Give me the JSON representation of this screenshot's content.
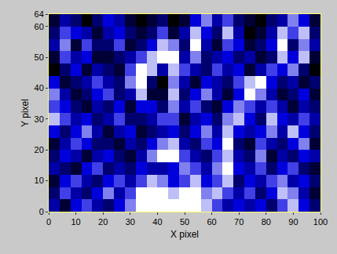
{
  "chart_data": {
    "type": "heatmap",
    "x_label": "X pixel",
    "y_label": "Y pixel",
    "xlim": [
      0,
      100
    ],
    "ylim": [
      0,
      64
    ],
    "xticks": [
      0,
      10,
      20,
      30,
      40,
      50,
      60,
      70,
      80,
      90,
      100
    ],
    "yticks": [
      0,
      10,
      20,
      30,
      40,
      50,
      60,
      64
    ],
    "x": [
      2,
      6,
      10,
      14,
      18,
      22,
      26,
      30,
      34,
      38,
      42,
      46,
      50,
      54,
      58,
      62,
      66,
      70,
      74,
      78,
      82,
      86,
      90,
      94,
      98
    ],
    "y": [
      62,
      58,
      54,
      50,
      46,
      42,
      38,
      34,
      30,
      26,
      22,
      18,
      14,
      10,
      6,
      2
    ],
    "z": [
      [
        3,
        5,
        4,
        2,
        4,
        6,
        5,
        3,
        2,
        3,
        4,
        2,
        3,
        6,
        8,
        5,
        7,
        4,
        3,
        2,
        4,
        5,
        8,
        6,
        3
      ],
      [
        4,
        7,
        6,
        5,
        3,
        5,
        6,
        4,
        3,
        4,
        7,
        3,
        5,
        9,
        6,
        4,
        9,
        5,
        2,
        3,
        5,
        9,
        7,
        9,
        4
      ],
      [
        5,
        8,
        3,
        7,
        4,
        4,
        7,
        3,
        4,
        6,
        9,
        8,
        4,
        10,
        5,
        3,
        7,
        6,
        3,
        4,
        6,
        10,
        4,
        8,
        5
      ],
      [
        3,
        7,
        5,
        6,
        3,
        3,
        4,
        5,
        7,
        9,
        10,
        10,
        5,
        8,
        4,
        5,
        6,
        4,
        5,
        3,
        4,
        9,
        6,
        9,
        3
      ],
      [
        2,
        4,
        6,
        3,
        5,
        4,
        3,
        7,
        10,
        9,
        5,
        9,
        7,
        5,
        4,
        7,
        5,
        6,
        3,
        5,
        7,
        6,
        8,
        4,
        2
      ],
      [
        6,
        3,
        4,
        5,
        7,
        5,
        4,
        8,
        10,
        4,
        2,
        8,
        5,
        3,
        6,
        5,
        4,
        7,
        9,
        10,
        6,
        4,
        5,
        3,
        4
      ],
      [
        8,
        5,
        3,
        4,
        6,
        7,
        4,
        5,
        9,
        3,
        3,
        9,
        4,
        6,
        8,
        5,
        3,
        6,
        10,
        8,
        5,
        3,
        4,
        6,
        3
      ],
      [
        7,
        6,
        4,
        3,
        5,
        4,
        6,
        3,
        6,
        6,
        4,
        8,
        5,
        7,
        4,
        3,
        6,
        8,
        7,
        5,
        7,
        5,
        3,
        5,
        4
      ],
      [
        9,
        7,
        5,
        6,
        4,
        5,
        7,
        4,
        4,
        5,
        7,
        7,
        3,
        5,
        6,
        4,
        8,
        9,
        6,
        4,
        9,
        6,
        5,
        7,
        5
      ],
      [
        6,
        4,
        6,
        8,
        5,
        3,
        5,
        6,
        3,
        4,
        5,
        6,
        4,
        6,
        8,
        5,
        9,
        6,
        5,
        6,
        8,
        5,
        9,
        6,
        4
      ],
      [
        3,
        5,
        7,
        6,
        4,
        4,
        3,
        5,
        4,
        6,
        8,
        9,
        5,
        4,
        7,
        6,
        10,
        4,
        3,
        7,
        5,
        4,
        6,
        8,
        3
      ],
      [
        4,
        6,
        5,
        3,
        5,
        6,
        4,
        3,
        5,
        8,
        10,
        10,
        7,
        5,
        4,
        7,
        9,
        5,
        4,
        8,
        3,
        5,
        4,
        6,
        5
      ],
      [
        5,
        4,
        3,
        6,
        7,
        4,
        5,
        4,
        6,
        5,
        5,
        6,
        8,
        7,
        5,
        8,
        10,
        6,
        5,
        7,
        4,
        6,
        7,
        4,
        3
      ],
      [
        3,
        6,
        7,
        5,
        4,
        6,
        7,
        5,
        7,
        9,
        8,
        6,
        7,
        9,
        6,
        7,
        9,
        4,
        6,
        5,
        7,
        8,
        5,
        6,
        4
      ],
      [
        4,
        7,
        5,
        4,
        6,
        8,
        5,
        7,
        10,
        10,
        10,
        9,
        10,
        10,
        8,
        9,
        7,
        5,
        7,
        4,
        6,
        9,
        8,
        5,
        3
      ],
      [
        5,
        3,
        6,
        7,
        5,
        4,
        6,
        8,
        10,
        10,
        10,
        10,
        10,
        10,
        9,
        7,
        5,
        6,
        5,
        6,
        4,
        7,
        9,
        6,
        4
      ]
    ]
  }
}
